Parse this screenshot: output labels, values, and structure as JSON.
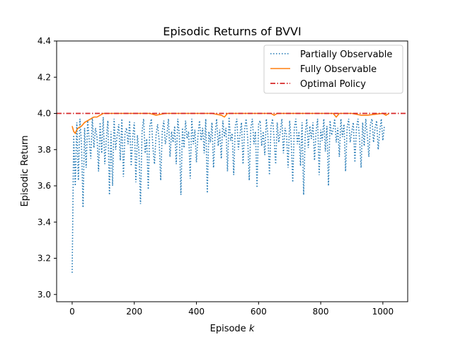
{
  "chart_data": {
    "type": "line",
    "title": "Episodic Returns of BVVI",
    "xlabel": "Episode",
    "xlabel_var": "k",
    "ylabel": "Episodic Return",
    "xlim": [
      -50,
      1080
    ],
    "ylim": [
      2.96,
      4.4
    ],
    "xticks": [
      0,
      200,
      400,
      600,
      800,
      1000
    ],
    "yticks": [
      3.0,
      3.2,
      3.4,
      3.6,
      3.8,
      4.0,
      4.2,
      4.4
    ],
    "xtick_labels": [
      "0",
      "200",
      "400",
      "600",
      "800",
      "1000"
    ],
    "ytick_labels": [
      "3.0",
      "3.2",
      "3.4",
      "3.6",
      "3.8",
      "4.0",
      "4.2",
      "4.4"
    ],
    "grid": false,
    "legend_position": "top-right",
    "series": [
      {
        "name": "Partially Observable",
        "color": "#1f77b4",
        "style": "dotted",
        "x_start": 0,
        "x_step": 5,
        "values": [
          3.12,
          3.88,
          3.6,
          3.95,
          3.63,
          3.97,
          3.83,
          3.48,
          3.92,
          3.7,
          3.96,
          3.85,
          3.75,
          3.98,
          3.81,
          3.92,
          3.87,
          3.68,
          3.95,
          3.78,
          3.98,
          3.72,
          3.86,
          3.96,
          3.55,
          3.9,
          3.6,
          3.97,
          3.8,
          3.88,
          3.94,
          3.74,
          3.97,
          3.65,
          3.89,
          3.92,
          3.83,
          3.96,
          3.71,
          3.87,
          3.95,
          3.62,
          3.88,
          3.79,
          3.5,
          3.9,
          3.97,
          3.78,
          3.86,
          3.58,
          3.93,
          3.97,
          3.81,
          3.72,
          3.88,
          3.94,
          3.85,
          3.63,
          3.9,
          3.96,
          3.83,
          3.88,
          3.97,
          3.76,
          3.9,
          3.84,
          3.93,
          3.72,
          3.97,
          3.88,
          3.55,
          3.92,
          3.81,
          3.96,
          3.86,
          3.9,
          3.64,
          3.97,
          3.83,
          3.91,
          3.73,
          3.88,
          3.96,
          3.85,
          3.92,
          3.78,
          3.97,
          3.56,
          3.9,
          3.84,
          3.95,
          3.7,
          3.88,
          3.97,
          3.82,
          3.91,
          3.75,
          3.96,
          3.87,
          3.92,
          3.68,
          3.98,
          3.85,
          3.89,
          3.66,
          3.93,
          3.97,
          3.8,
          3.88,
          3.95,
          3.72,
          3.91,
          3.97,
          3.86,
          3.63,
          3.92,
          3.97,
          3.83,
          3.9,
          3.59,
          3.94,
          3.96,
          3.82,
          3.9,
          3.77,
          3.97,
          3.88,
          3.66,
          3.93,
          3.97,
          3.86,
          3.72,
          3.95,
          3.84,
          3.9,
          3.97,
          3.78,
          3.92,
          3.88,
          3.7,
          3.96,
          3.85,
          3.62,
          3.92,
          3.97,
          3.83,
          3.9,
          3.71,
          3.95,
          3.55,
          3.88,
          3.97,
          3.81,
          3.93,
          3.86,
          3.95,
          3.74,
          3.9,
          3.97,
          3.66,
          3.91,
          3.85,
          3.97,
          3.79,
          3.93,
          3.6,
          3.96,
          3.88,
          3.91,
          3.97,
          3.84,
          3.92,
          3.76,
          3.97,
          3.87,
          3.94,
          3.68,
          3.92,
          3.97,
          3.84,
          3.9,
          3.95,
          3.73,
          3.92,
          3.97,
          3.86,
          3.7,
          3.95,
          3.82,
          3.97,
          3.88,
          3.76,
          3.94,
          3.97,
          3.84,
          3.92,
          3.96,
          3.8,
          3.9,
          3.97,
          3.85,
          3.93
        ]
      },
      {
        "name": "Fully Observable",
        "color": "#ff7f0e",
        "style": "solid",
        "x": [
          0,
          5,
          10,
          15,
          20,
          30,
          40,
          50,
          60,
          70,
          80,
          90,
          100,
          120,
          150,
          200,
          250,
          270,
          300,
          350,
          400,
          450,
          480,
          490,
          500,
          550,
          600,
          640,
          650,
          660,
          700,
          750,
          800,
          840,
          850,
          860,
          900,
          930,
          950,
          1000,
          1010,
          1020
        ],
        "values": [
          3.93,
          3.9,
          3.89,
          3.91,
          3.92,
          3.93,
          3.95,
          3.96,
          3.97,
          3.98,
          3.98,
          3.99,
          4.0,
          4.0,
          4.0,
          4.0,
          4.0,
          3.99,
          4.0,
          4.0,
          4.0,
          4.0,
          3.99,
          3.98,
          4.0,
          4.0,
          4.0,
          4.0,
          3.99,
          4.0,
          4.0,
          4.0,
          4.0,
          4.0,
          3.98,
          4.0,
          4.0,
          3.99,
          3.99,
          4.0,
          3.99,
          4.0
        ]
      },
      {
        "name": "Optimal Policy",
        "color": "#d62728",
        "style": "dashdot",
        "y_const": 4.0
      }
    ]
  }
}
